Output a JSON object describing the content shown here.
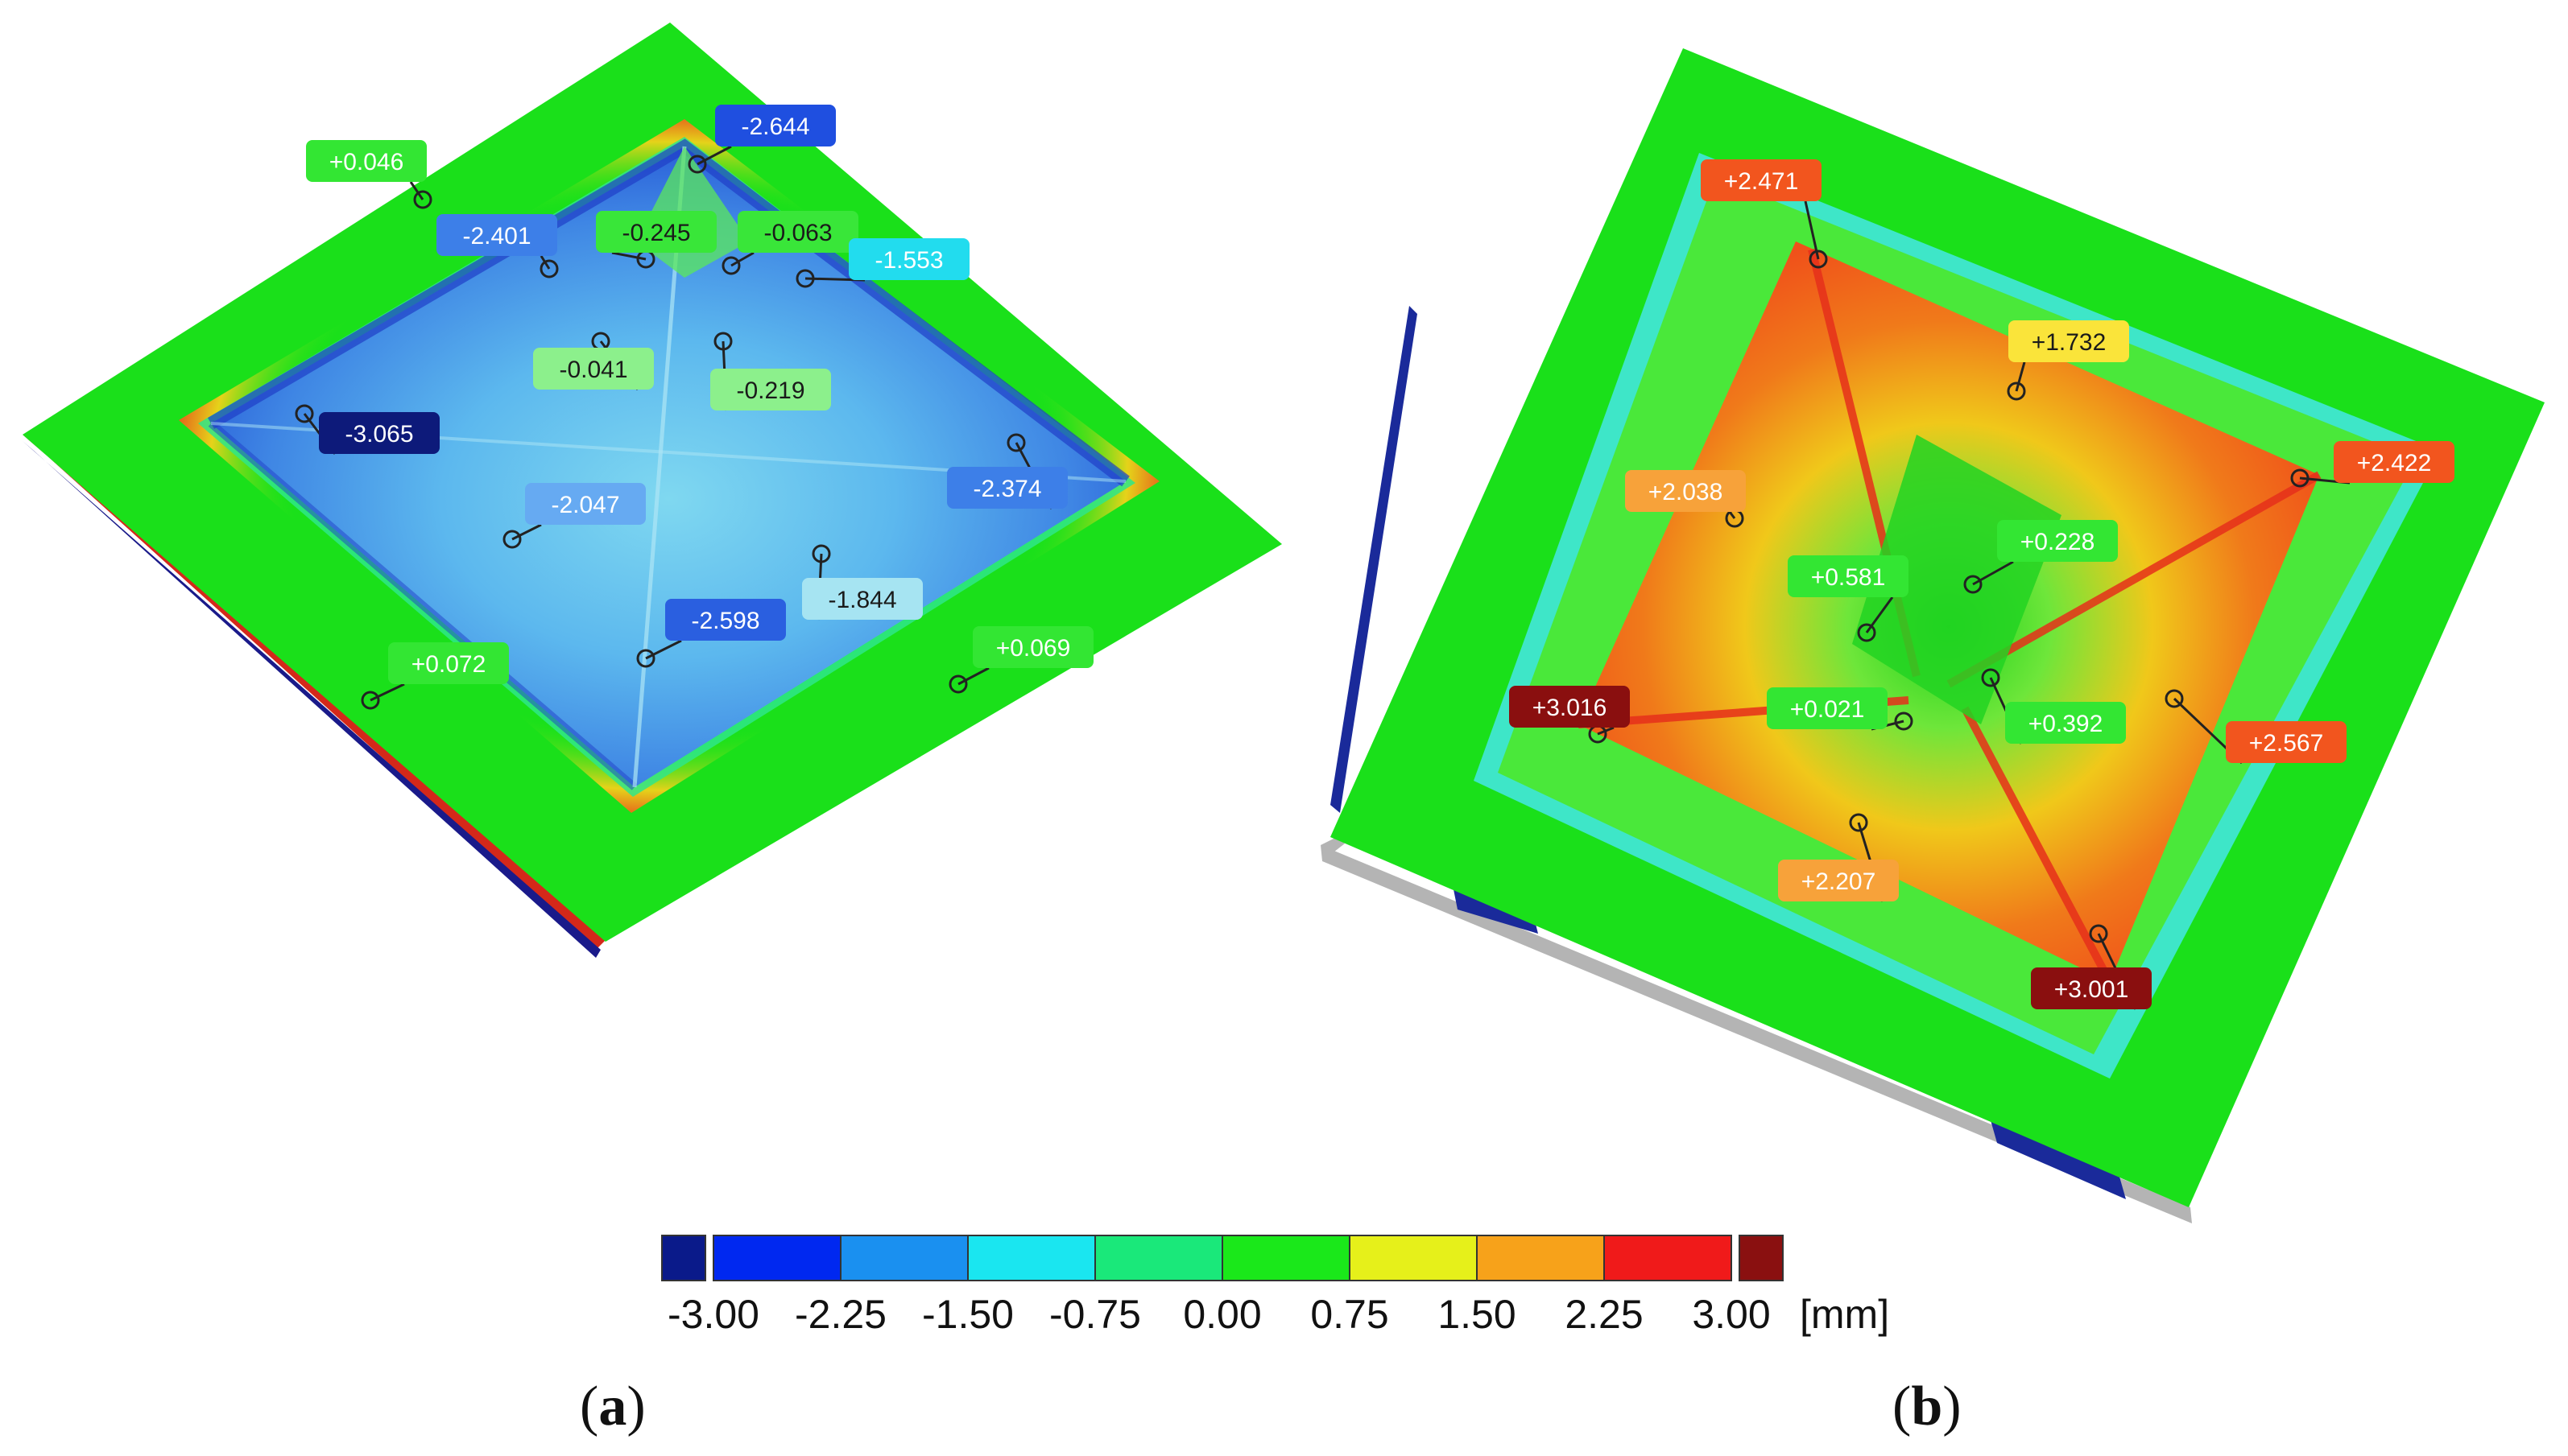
{
  "panels": [
    {
      "id": "a",
      "label_open": "(",
      "label_letter": "a",
      "label_close": ")",
      "annotations": [
        {
          "value": "+0.046",
          "color": "#33e633",
          "text_color": "#ffffff"
        },
        {
          "value": "-2.644",
          "color": "#1f4fe0",
          "text_color": "#ffffff"
        },
        {
          "value": "-2.401",
          "color": "#3d7fe8",
          "text_color": "#ffffff"
        },
        {
          "value": "-0.245",
          "color": "#39e639",
          "text_color": "#1a1a1a"
        },
        {
          "value": "-0.063",
          "color": "#39e639",
          "text_color": "#1a1a1a"
        },
        {
          "value": "-1.553",
          "color": "#22dcee",
          "text_color": "#ffffff"
        },
        {
          "value": "-0.041",
          "color": "#8cf08c",
          "text_color": "#1a1a1a"
        },
        {
          "value": "-0.219",
          "color": "#8cf08c",
          "text_color": "#1a1a1a"
        },
        {
          "value": "-3.065",
          "color": "#0d1a7a",
          "text_color": "#ffffff"
        },
        {
          "value": "-2.374",
          "color": "#3d7fe8",
          "text_color": "#ffffff"
        },
        {
          "value": "-2.047",
          "color": "#66aaf2",
          "text_color": "#ffffff"
        },
        {
          "value": "-1.844",
          "color": "#a6e4f2",
          "text_color": "#1a1a1a"
        },
        {
          "value": "-2.598",
          "color": "#2a5fe0",
          "text_color": "#ffffff"
        },
        {
          "value": "+0.072",
          "color": "#33e633",
          "text_color": "#ffffff"
        },
        {
          "value": "+0.069",
          "color": "#33e633",
          "text_color": "#ffffff"
        }
      ]
    },
    {
      "id": "b",
      "label_open": "(",
      "label_letter": "b",
      "label_close": ")",
      "annotations": [
        {
          "value": "+2.471",
          "color": "#f2551e",
          "text_color": "#ffffff"
        },
        {
          "value": "+1.732",
          "color": "#fae43a",
          "text_color": "#1a1a1a"
        },
        {
          "value": "+2.422",
          "color": "#f2551e",
          "text_color": "#ffffff"
        },
        {
          "value": "+2.038",
          "color": "#f7a23a",
          "text_color": "#ffffff"
        },
        {
          "value": "+0.228",
          "color": "#33e633",
          "text_color": "#ffffff"
        },
        {
          "value": "+0.581",
          "color": "#33e633",
          "text_color": "#ffffff"
        },
        {
          "value": "+3.016",
          "color": "#8a0f0f",
          "text_color": "#ffffff"
        },
        {
          "value": "+0.021",
          "color": "#33e633",
          "text_color": "#ffffff"
        },
        {
          "value": "+0.392",
          "color": "#33e633",
          "text_color": "#ffffff"
        },
        {
          "value": "+2.567",
          "color": "#f2551e",
          "text_color": "#ffffff"
        },
        {
          "value": "+2.207",
          "color": "#f7a23a",
          "text_color": "#ffffff"
        },
        {
          "value": "+3.001",
          "color": "#8a0f0f",
          "text_color": "#ffffff"
        }
      ]
    }
  ],
  "colorbar": {
    "unit": "[mm]",
    "ticks": [
      "-3.00",
      "-2.25",
      "-1.50",
      "-0.75",
      "0.00",
      "0.75",
      "1.50",
      "2.25",
      "3.00"
    ],
    "segment_colors": [
      "#0a1a8a",
      "#0028f0",
      "#1a90f0",
      "#1ae6f0",
      "#1ae87a",
      "#1ae81a",
      "#e6f01a",
      "#f7a21a",
      "#f01a1a",
      "#8a1010"
    ]
  }
}
